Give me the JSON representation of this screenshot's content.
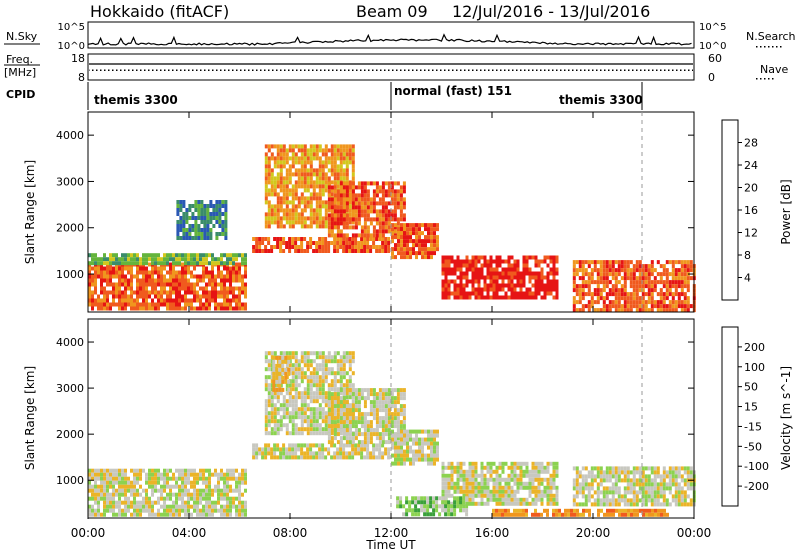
{
  "header": {
    "station": "Hokkaido (fitACF)",
    "beam": "Beam 09",
    "dates": "12/Jul/2016 - 13/Jul/2016"
  },
  "top_panels": {
    "nsky_label": "N.Sky",
    "nsky_ticks": [
      "10^5",
      "10^0"
    ],
    "nsearch_label": "N.Search",
    "nsearch_ticks": [
      "10^5",
      "10^0"
    ],
    "freq_label": "Freq.",
    "freq_unit": "[MHz]",
    "freq_ticks": [
      "18",
      "8"
    ],
    "nave_label": "Nave",
    "nave_ticks": [
      "60",
      "0"
    ],
    "cpid_label": "CPID",
    "cpid_segments": [
      {
        "label": "themis 3300",
        "start_h": 0,
        "end_h": 12
      },
      {
        "label": "normal (fast) 151",
        "start_h": 12,
        "end_h": 22
      },
      {
        "label": "themis 3300",
        "start_h": 22,
        "end_h": 24
      }
    ]
  },
  "colors": {
    "power": [
      "#1e1ee6",
      "#2a58b4",
      "#3a8c6a",
      "#64b43c",
      "#d2c81e",
      "#f0961e",
      "#f05a1e",
      "#e61414"
    ],
    "velocity": [
      "#e61414",
      "#f05a1e",
      "#f0961e",
      "#ebb428",
      "#c8c8c0",
      "#8cd250",
      "#3aa03a",
      "#2a6eb4",
      "#1e1ee6"
    ],
    "nsky_line": "#000000",
    "grid_dash": "#999999"
  },
  "chart_data": [
    {
      "type": "heatmap",
      "title": "",
      "ylabel": "Slant Range [km]",
      "xlabel": "",
      "x_range_h": [
        0,
        24
      ],
      "ylim": [
        180,
        4500
      ],
      "yticks": [
        1000,
        2000,
        3000,
        4000
      ],
      "xticks": [
        "00:00",
        "04:00",
        "08:00",
        "12:00",
        "16:00",
        "20:00",
        "00:00"
      ],
      "colorbar": {
        "label": "Power [dB]",
        "ticks": [
          "4",
          "8",
          "12",
          "16",
          "20",
          "24",
          "28"
        ]
      },
      "regions": [
        {
          "t0": 0.0,
          "t1": 6.2,
          "r0": 250,
          "r1": 1250,
          "level": 6
        },
        {
          "t0": 0.0,
          "t1": 6.2,
          "r0": 1250,
          "r1": 1450,
          "level": 3
        },
        {
          "t0": 6.5,
          "t1": 11.9,
          "r0": 1500,
          "r1": 1800,
          "level": 6
        },
        {
          "t0": 7.0,
          "t1": 10.5,
          "r0": 2000,
          "r1": 3800,
          "level": 5
        },
        {
          "t0": 9.5,
          "t1": 12.5,
          "r0": 1800,
          "r1": 3000,
          "level": 6
        },
        {
          "t0": 12.0,
          "t1": 13.8,
          "r0": 1400,
          "r1": 2100,
          "level": 6
        },
        {
          "t0": 14.0,
          "t1": 18.6,
          "r0": 500,
          "r1": 1400,
          "level": 7
        },
        {
          "t0": 19.2,
          "t1": 24.0,
          "r0": 250,
          "r1": 1300,
          "level": 6
        },
        {
          "t0": 3.5,
          "t1": 5.5,
          "r0": 1800,
          "r1": 2600,
          "level": 2
        }
      ]
    },
    {
      "type": "heatmap",
      "title": "",
      "ylabel": "Slant Range [km]",
      "xlabel": "Time UT",
      "x_range_h": [
        0,
        24
      ],
      "ylim": [
        180,
        4500
      ],
      "yticks": [
        1000,
        2000,
        3000,
        4000
      ],
      "xticks": [
        "00:00",
        "04:00",
        "08:00",
        "12:00",
        "16:00",
        "20:00",
        "00:00"
      ],
      "colorbar": {
        "label": "Velocity [m s^-1]",
        "ticks": [
          "-200",
          "-100",
          "-50",
          "-15",
          "15",
          "50",
          "100",
          "200"
        ]
      },
      "regions": [
        {
          "t0": 0.0,
          "t1": 6.2,
          "r0": 250,
          "r1": 1250,
          "level": 4
        },
        {
          "t0": 6.5,
          "t1": 11.9,
          "r0": 1500,
          "r1": 1800,
          "level": 4
        },
        {
          "t0": 7.0,
          "t1": 10.5,
          "r0": 2000,
          "r1": 3800,
          "level": 4
        },
        {
          "t0": 9.5,
          "t1": 12.5,
          "r0": 1800,
          "r1": 3000,
          "level": 4
        },
        {
          "t0": 12.0,
          "t1": 13.8,
          "r0": 1400,
          "r1": 2100,
          "level": 4
        },
        {
          "t0": 14.0,
          "t1": 18.6,
          "r0": 500,
          "r1": 1400,
          "level": 4
        },
        {
          "t0": 19.2,
          "t1": 24.0,
          "r0": 500,
          "r1": 1300,
          "level": 4
        },
        {
          "t0": 12.2,
          "t1": 15.0,
          "r0": 300,
          "r1": 650,
          "level": 5
        },
        {
          "t0": 16.0,
          "t1": 23.0,
          "r0": 220,
          "r1": 380,
          "level": 2
        },
        {
          "t0": 7.3,
          "t1": 7.9,
          "r0": 3000,
          "r1": 3700,
          "level": 3
        }
      ]
    }
  ]
}
